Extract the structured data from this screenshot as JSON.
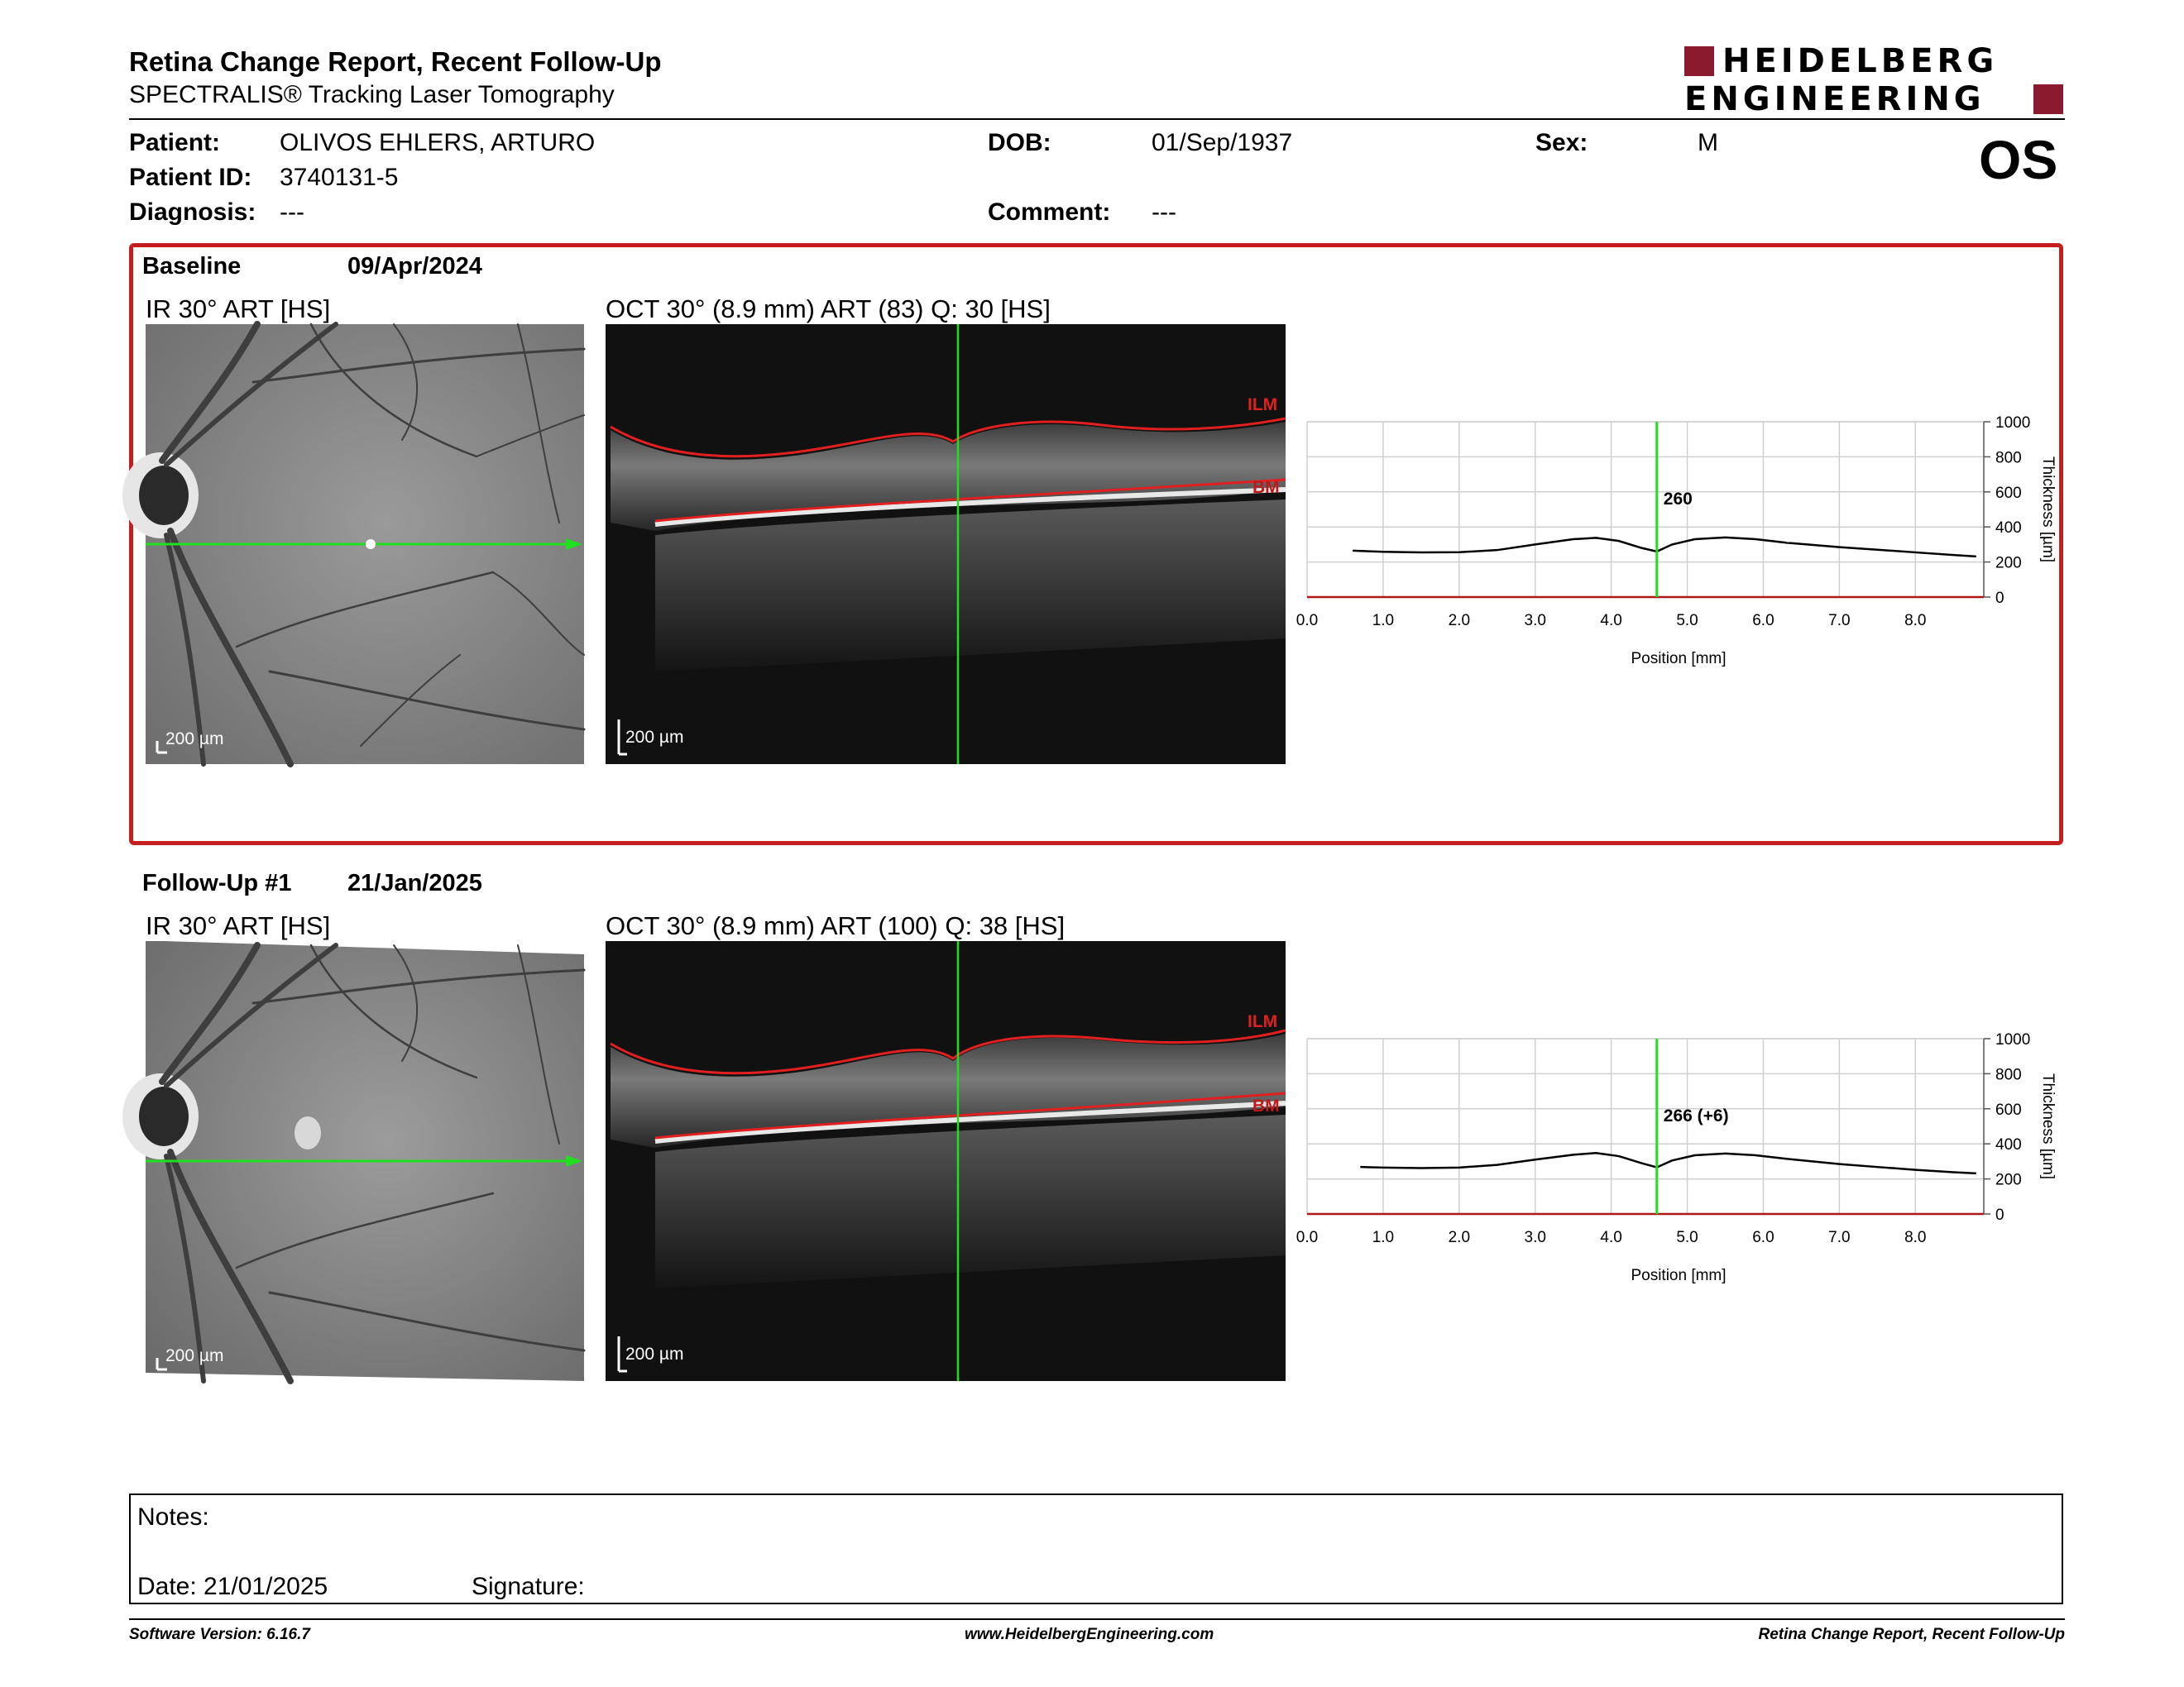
{
  "header": {
    "title": "Retina Change Report, Recent Follow-Up",
    "subtitle": "SPECTRALIS® Tracking Laser Tomography",
    "logo_line1": "HEIDELBERG",
    "logo_line2": "ENGINEERING",
    "brand_color": "#8c1a2e"
  },
  "patient": {
    "patient_label": "Patient:",
    "patient_value": "OLIVOS EHLERS, ARTURO",
    "id_label": "Patient ID:",
    "id_value": "3740131-5",
    "diagnosis_label": "Diagnosis:",
    "diagnosis_value": "---",
    "dob_label": "DOB:",
    "dob_value": "01/Sep/1937",
    "comment_label": "Comment:",
    "comment_value": "---",
    "sex_label": "Sex:",
    "sex_value": "M",
    "eye": "OS"
  },
  "baseline": {
    "label": "Baseline",
    "date": "09/Apr/2024",
    "ir_label": "IR 30° ART [HS]",
    "oct_label": "OCT 30° (8.9 mm) ART (83) Q: 30 [HS]",
    "scale": "200 µm",
    "ilm": "ILM",
    "bm": "BM",
    "marker_value": "260"
  },
  "followup": {
    "label": "Follow-Up #1",
    "date": "21/Jan/2025",
    "ir_label": "IR 30° ART [HS]",
    "oct_label": "OCT 30° (8.9 mm) ART (100) Q: 38 [HS]",
    "scale": "200 µm",
    "ilm": "ILM",
    "bm": "BM",
    "marker_value": "266 (+6)"
  },
  "chart_data": [
    {
      "type": "line",
      "xlabel": "Position [mm]",
      "ylabel": "Thickness [µm]",
      "xlim": [
        0,
        8.9
      ],
      "ylim": [
        0,
        1000
      ],
      "x_ticks": [
        "0.0",
        "1.0",
        "2.0",
        "3.0",
        "4.0",
        "5.0",
        "6.0",
        "7.0",
        "8.0"
      ],
      "y_ticks": [
        "0",
        "200",
        "400",
        "600",
        "800",
        "1000"
      ],
      "grid": true,
      "marker_x": 4.6,
      "marker_label": "260",
      "x": [
        0.6,
        1.0,
        1.5,
        2.0,
        2.5,
        3.0,
        3.5,
        3.8,
        4.1,
        4.4,
        4.6,
        4.8,
        5.1,
        5.5,
        5.9,
        6.3,
        7.0,
        7.5,
        8.0,
        8.5,
        8.8
      ],
      "y": [
        265,
        258,
        255,
        256,
        268,
        300,
        330,
        338,
        320,
        280,
        260,
        300,
        330,
        340,
        330,
        310,
        285,
        270,
        255,
        240,
        232
      ]
    },
    {
      "type": "line",
      "xlabel": "Position [mm]",
      "ylabel": "Thickness [µm]",
      "xlim": [
        0,
        8.9
      ],
      "ylim": [
        0,
        1000
      ],
      "x_ticks": [
        "0.0",
        "1.0",
        "2.0",
        "3.0",
        "4.0",
        "5.0",
        "6.0",
        "7.0",
        "8.0"
      ],
      "y_ticks": [
        "0",
        "200",
        "400",
        "600",
        "800",
        "1000"
      ],
      "grid": true,
      "marker_x": 4.6,
      "marker_label": "266 (+6)",
      "x": [
        0.7,
        1.0,
        1.5,
        2.0,
        2.5,
        3.0,
        3.5,
        3.8,
        4.1,
        4.4,
        4.6,
        4.8,
        5.1,
        5.5,
        5.9,
        6.3,
        7.0,
        7.5,
        8.0,
        8.5,
        8.8
      ],
      "y": [
        268,
        265,
        262,
        265,
        280,
        310,
        338,
        348,
        330,
        290,
        266,
        305,
        335,
        345,
        335,
        315,
        285,
        268,
        252,
        238,
        232
      ]
    }
  ],
  "notes": {
    "notes_label": "Notes:",
    "date_label": "Date: 21/01/2025",
    "signature_label": "Signature:"
  },
  "footer": {
    "software": "Software Version: 6.16.7",
    "website": "www.HeidelbergEngineering.com",
    "report": "Retina Change Report, Recent Follow-Up"
  }
}
